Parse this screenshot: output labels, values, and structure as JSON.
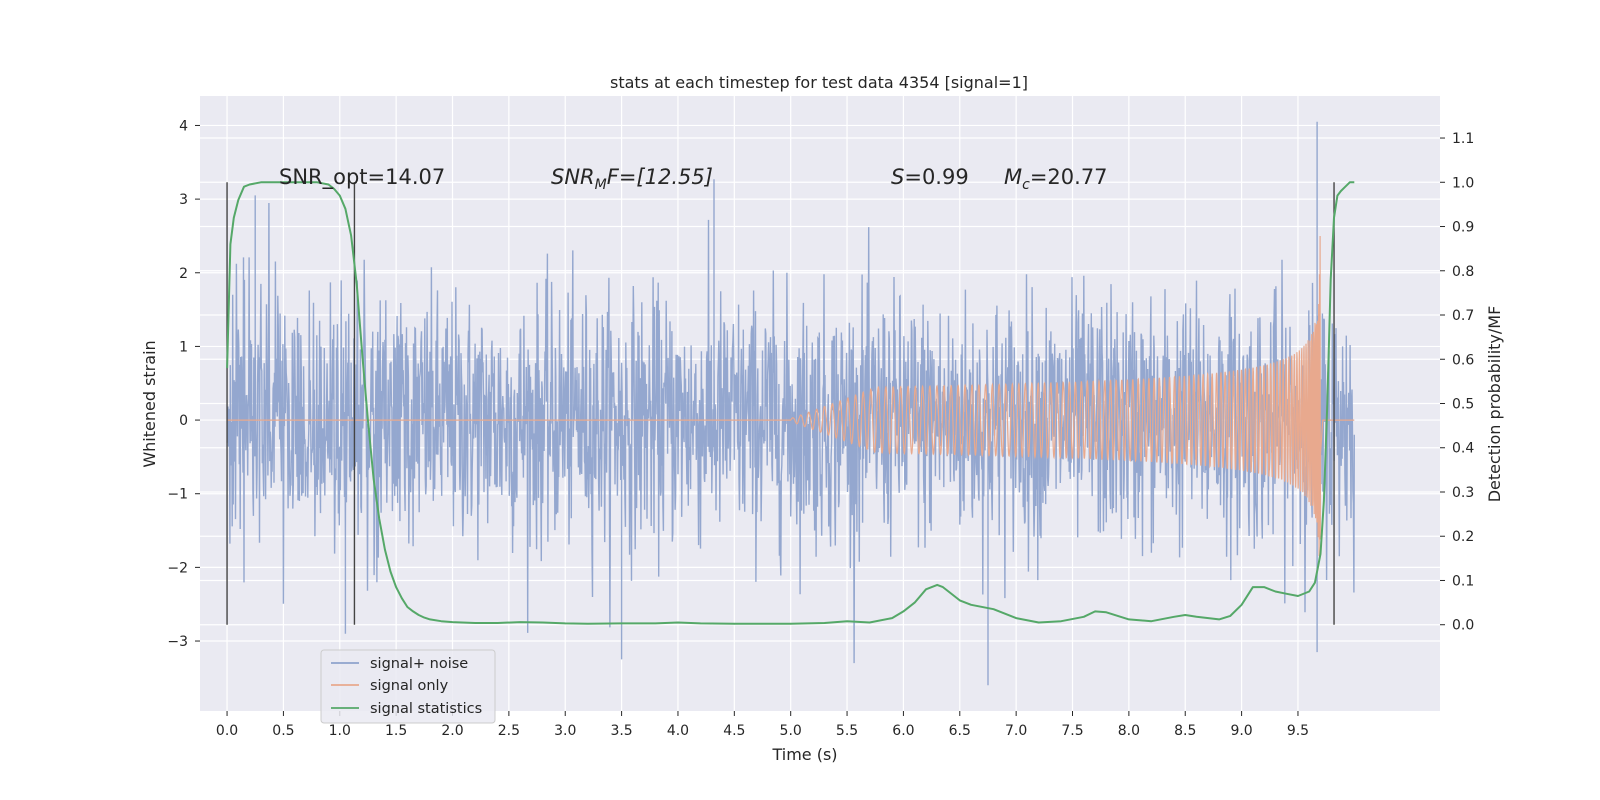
{
  "chart_data": {
    "type": "line",
    "title": "stats at each timestep for test data 4354 [signal=1]",
    "xlabel": "Time (s)",
    "ylabel": "Whitened strain",
    "y2label": "Detection probability/MF",
    "xlim": [
      -0.24,
      10.76
    ],
    "ylim": [
      -3.95,
      4.4
    ],
    "y2lim": [
      -0.195,
      1.195
    ],
    "x_ticks": [
      "0.0",
      "0.5",
      "1.0",
      "1.5",
      "2.0",
      "2.5",
      "3.0",
      "3.5",
      "4.0",
      "4.5",
      "5.0",
      "5.5",
      "6.0",
      "6.5",
      "7.0",
      "7.5",
      "8.0",
      "8.5",
      "9.0",
      "9.5"
    ],
    "y_ticks": [
      "4",
      "3",
      "2",
      "1",
      "0",
      "−1",
      "−2",
      "−3"
    ],
    "y2_ticks": [
      "1.1",
      "1.0",
      "0.9",
      "0.8",
      "0.7",
      "0.6",
      "0.5",
      "0.4",
      "0.3",
      "0.2",
      "0.1",
      "0.0"
    ],
    "grid": true,
    "legend_position": "bottom-left",
    "annotations": {
      "snr_opt": "SNR_opt=14.07",
      "snr_mf_base": "SNR",
      "snr_mf_sub": "M",
      "snr_mf_rest": "F=[12.55]",
      "s_var": "S",
      "s_val": "=0.99",
      "mc_var": "M",
      "mc_sub": "c",
      "mc_val": "=20.77"
    },
    "vertical_markers_x": [
      0.0,
      1.13,
      9.82
    ],
    "series": [
      {
        "name": "signal+ noise",
        "axis": "left",
        "color": "#8fa3cc",
        "noise_std": 0.83,
        "x_range": [
          0.0,
          10.0
        ],
        "spikes": [
          [
            0.25,
            3.05
          ],
          [
            4.32,
            3.27
          ],
          [
            9.67,
            4.05
          ],
          [
            3.5,
            -3.25
          ],
          [
            6.75,
            -3.6
          ],
          [
            9.67,
            -3.15
          ],
          [
            1.05,
            -2.9
          ]
        ]
      },
      {
        "name": "signal only",
        "axis": "left",
        "color": "#e8a98e",
        "chirp": {
          "t_start": 5.0,
          "t_merge": 9.7,
          "peak_amplitude": 2.5
        }
      },
      {
        "name": "signal statistics",
        "axis": "right",
        "color": "#55a868",
        "x": [
          0.0,
          0.03,
          0.06,
          0.1,
          0.15,
          0.2,
          0.3,
          0.4,
          0.5,
          0.6,
          0.7,
          0.8,
          0.9,
          0.95,
          1.0,
          1.05,
          1.1,
          1.15,
          1.2,
          1.25,
          1.3,
          1.35,
          1.4,
          1.45,
          1.5,
          1.55,
          1.6,
          1.65,
          1.7,
          1.75,
          1.8,
          1.9,
          2.0,
          2.2,
          2.4,
          2.6,
          2.8,
          3.0,
          3.2,
          3.5,
          3.8,
          4.0,
          4.2,
          4.5,
          5.0,
          5.3,
          5.5,
          5.7,
          5.9,
          6.0,
          6.1,
          6.2,
          6.3,
          6.35,
          6.4,
          6.5,
          6.6,
          6.8,
          7.0,
          7.2,
          7.4,
          7.6,
          7.7,
          7.8,
          8.0,
          8.2,
          8.4,
          8.5,
          8.6,
          8.8,
          8.9,
          9.0,
          9.1,
          9.2,
          9.3,
          9.4,
          9.5,
          9.6,
          9.65,
          9.7,
          9.73,
          9.76,
          9.79,
          9.82,
          9.85,
          9.88,
          9.92,
          9.96,
          10.0
        ],
        "values": [
          0.58,
          0.86,
          0.92,
          0.96,
          0.99,
          0.995,
          1.0,
          1.0,
          1.0,
          1.0,
          1.0,
          1.0,
          0.995,
          0.985,
          0.97,
          0.94,
          0.88,
          0.77,
          0.61,
          0.46,
          0.33,
          0.24,
          0.17,
          0.12,
          0.085,
          0.06,
          0.04,
          0.03,
          0.022,
          0.016,
          0.012,
          0.008,
          0.006,
          0.004,
          0.004,
          0.006,
          0.005,
          0.003,
          0.002,
          0.003,
          0.003,
          0.005,
          0.003,
          0.002,
          0.002,
          0.004,
          0.008,
          0.005,
          0.015,
          0.03,
          0.05,
          0.08,
          0.09,
          0.085,
          0.075,
          0.055,
          0.045,
          0.035,
          0.015,
          0.005,
          0.008,
          0.018,
          0.03,
          0.028,
          0.012,
          0.008,
          0.018,
          0.022,
          0.018,
          0.012,
          0.02,
          0.045,
          0.085,
          0.085,
          0.075,
          0.07,
          0.065,
          0.075,
          0.095,
          0.16,
          0.28,
          0.5,
          0.78,
          0.92,
          0.97,
          0.98,
          0.99,
          1.0,
          1.0
        ]
      }
    ]
  }
}
